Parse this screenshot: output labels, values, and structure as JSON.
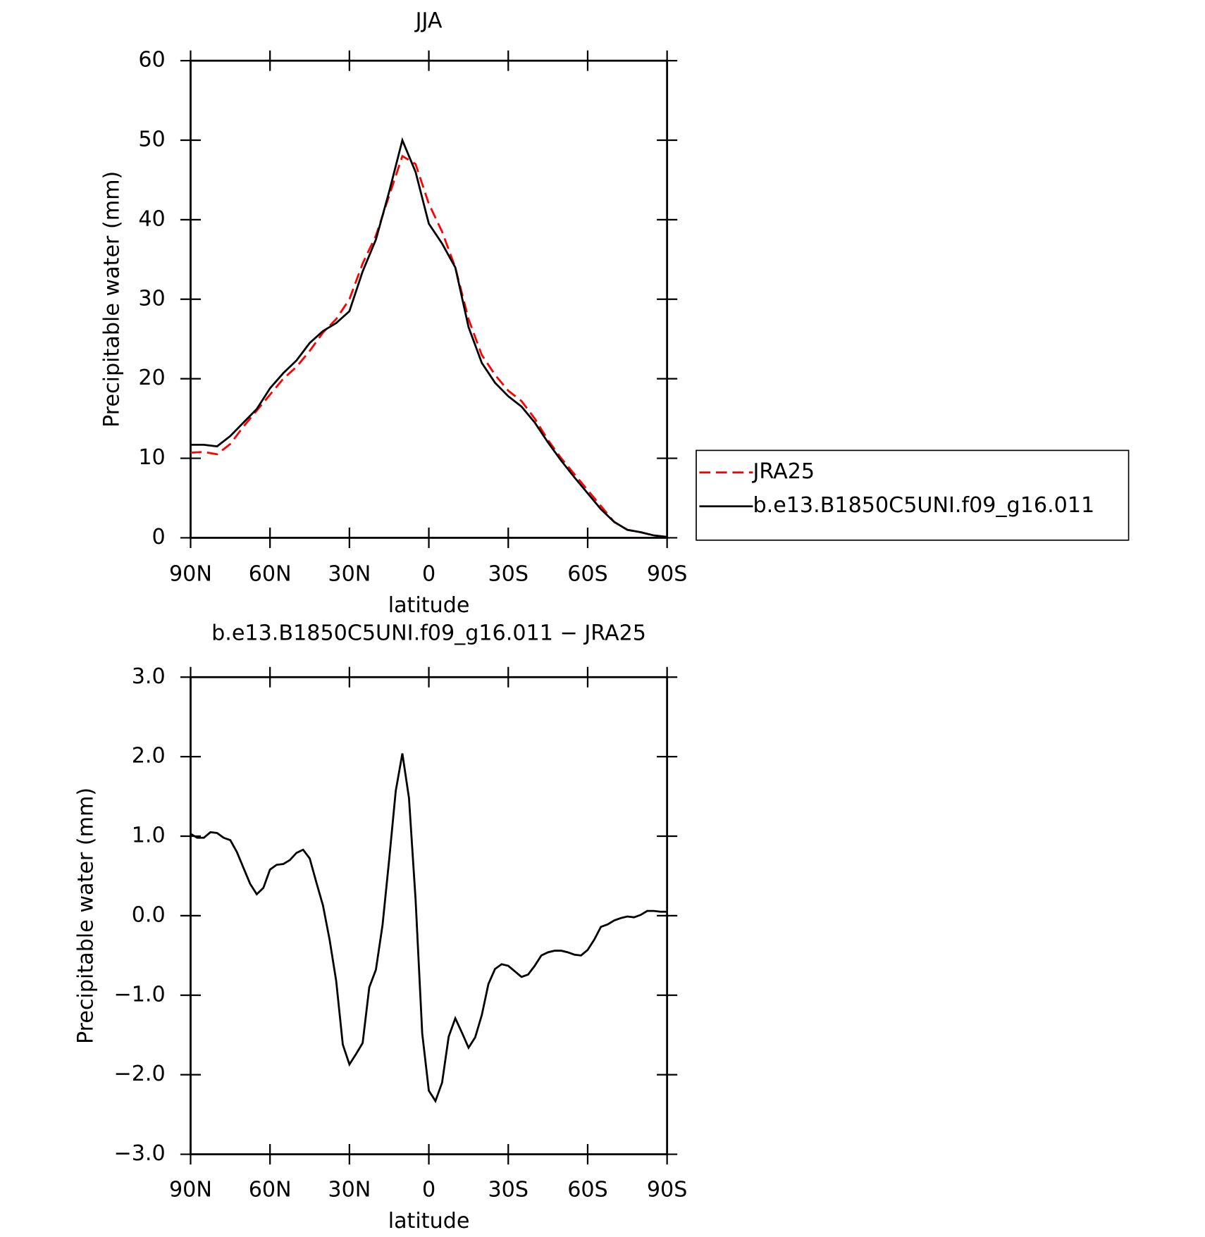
{
  "chart_data": [
    {
      "type": "line",
      "title": "JJA",
      "x_label": "latitude",
      "y_label": "Precipitable water (mm)",
      "x": [
        90,
        85,
        80,
        75,
        70,
        65,
        60,
        55,
        50,
        45,
        40,
        35,
        30,
        25,
        20,
        15,
        10,
        5,
        0,
        -5,
        -10,
        -15,
        -20,
        -25,
        -30,
        -35,
        -40,
        -45,
        -50,
        -55,
        -60,
        -65,
        -70,
        -75,
        -80,
        -85,
        -90
      ],
      "series": [
        {
          "name": "JRA25",
          "color": "#ff0000",
          "dash": "dashed",
          "values": [
            10.7,
            10.8,
            10.5,
            11.8,
            14,
            16,
            18,
            20,
            21.5,
            23.5,
            25.8,
            27.5,
            30,
            34.5,
            38,
            43,
            48,
            47,
            42,
            38.5,
            34,
            27.5,
            23,
            20.5,
            18.5,
            17.2,
            15,
            12.3,
            10,
            8,
            6,
            4,
            2,
            1,
            0.7,
            0.3,
            0.1
          ]
        },
        {
          "name": "b.e13.B1850C5UNI.f09_g16.011",
          "color": "#000000",
          "dash": "solid",
          "values": [
            11.7,
            11.7,
            11.5,
            12.8,
            14.5,
            16.2,
            18.8,
            20.7,
            22.3,
            24.5,
            26,
            27,
            28.5,
            33.5,
            37.5,
            43.5,
            50,
            46,
            39.5,
            37,
            34,
            26.5,
            22,
            19.5,
            17.8,
            16.5,
            14.5,
            12,
            9.7,
            7.6,
            5.6,
            3.6,
            2,
            1,
            0.7,
            0.3,
            0.1
          ]
        }
      ],
      "xlim": [
        90,
        -90
      ],
      "xticks": [
        {
          "value": 90,
          "label": "90N"
        },
        {
          "value": 60,
          "label": "60N"
        },
        {
          "value": 30,
          "label": "30N"
        },
        0,
        {
          "value": -30,
          "label": "30S"
        },
        {
          "value": -60,
          "label": "60S"
        },
        {
          "value": -90,
          "label": "90S"
        }
      ],
      "ylim": [
        0,
        60
      ],
      "yticks": [
        0,
        10,
        20,
        30,
        40,
        50,
        60
      ],
      "legend": "right"
    },
    {
      "type": "line",
      "title": "b.e13.B1850C5UNI.f09_g16.011 − JRA25",
      "x_label": "latitude",
      "y_label": "Precipitable water (mm)",
      "x": [
        90,
        87.5,
        85,
        82.5,
        80,
        77.5,
        75,
        72.5,
        70,
        67.5,
        65,
        62.5,
        60,
        57.5,
        55,
        52.5,
        50,
        47.5,
        45,
        42.5,
        40,
        37.5,
        35,
        32.5,
        30,
        27.5,
        25,
        22.5,
        20,
        17.5,
        15,
        12.5,
        10,
        7.5,
        5,
        2.5,
        0,
        -2.5,
        -5,
        -7.5,
        -10,
        -12.5,
        -15,
        -17.5,
        -20,
        -22.5,
        -25,
        -27.5,
        -30,
        -32.5,
        -35,
        -37.5,
        -40,
        -42.5,
        -45,
        -47.5,
        -50,
        -52.5,
        -55,
        -57.5,
        -60,
        -62.5,
        -65,
        -67.5,
        -70,
        -72.5,
        -75,
        -77.5,
        -80,
        -82.5,
        -85,
        -87.5,
        -90
      ],
      "values": [
        1.03,
        0.98,
        0.98,
        1.05,
        1.04,
        0.98,
        0.95,
        0.8,
        0.6,
        0.4,
        0.27,
        0.35,
        0.58,
        0.64,
        0.65,
        0.7,
        0.79,
        0.83,
        0.72,
        0.42,
        0.13,
        -0.3,
        -0.82,
        -1.62,
        -1.87,
        -1.74,
        -1.6,
        -0.9,
        -0.68,
        -0.12,
        0.7,
        1.57,
        2.04,
        1.48,
        0.2,
        -1.48,
        -2.2,
        -2.33,
        -2.1,
        -1.52,
        -1.29,
        -1.47,
        -1.66,
        -1.53,
        -1.25,
        -0.86,
        -0.67,
        -0.61,
        -0.63,
        -0.7,
        -0.77,
        -0.74,
        -0.63,
        -0.5,
        -0.46,
        -0.44,
        -0.44,
        -0.46,
        -0.49,
        -0.5,
        -0.43,
        -0.3,
        -0.14,
        -0.11,
        -0.06,
        -0.03,
        -0.01,
        -0.02,
        0.01,
        0.06,
        0.06,
        0.05,
        0.05
      ],
      "color": "#000000",
      "dash": "solid",
      "xlim": [
        90,
        -90
      ],
      "xticks": [
        {
          "value": 90,
          "label": "90N"
        },
        {
          "value": 60,
          "label": "60N"
        },
        {
          "value": 30,
          "label": "30N"
        },
        0,
        {
          "value": -30,
          "label": "30S"
        },
        {
          "value": -60,
          "label": "60S"
        },
        {
          "value": -90,
          "label": "90S"
        }
      ],
      "ylim": [
        -3,
        3
      ],
      "yticks": [
        {
          "value": -3,
          "label": "−3.0"
        },
        {
          "value": -2,
          "label": "−2.0"
        },
        {
          "value": -1,
          "label": "−1.0"
        },
        {
          "value": 0,
          "label": "0.0"
        },
        {
          "value": 1,
          "label": "1.0"
        },
        {
          "value": 2,
          "label": "2.0"
        },
        {
          "value": 3,
          "label": "3.0"
        }
      ]
    }
  ]
}
